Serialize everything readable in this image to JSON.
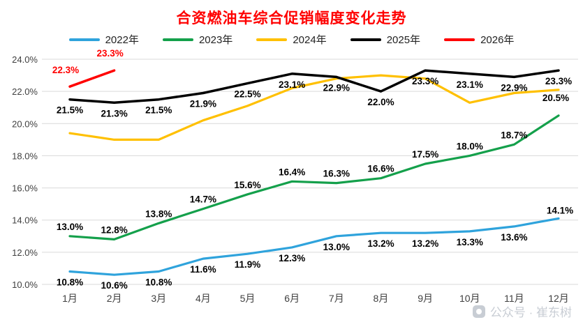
{
  "watermark": {
    "text": "公众号 · 崔东树",
    "icon": "camera-icon"
  },
  "chart_data": {
    "type": "line",
    "title": "合资燃油车综合促销幅度变化走势",
    "xlabel": "",
    "ylabel": "",
    "categories": [
      "1月",
      "2月",
      "3月",
      "4月",
      "5月",
      "6月",
      "7月",
      "8月",
      "9月",
      "10月",
      "11月",
      "12月"
    ],
    "ylim": [
      10,
      24
    ],
    "ytick_step": 2,
    "ytick_labels": [
      "10.0%",
      "12.0%",
      "14.0%",
      "16.0%",
      "18.0%",
      "20.0%",
      "22.0%",
      "24.0%"
    ],
    "grid": true,
    "legend_position": "top",
    "series": [
      {
        "name": "2022年",
        "color": "#2FA3DC",
        "label_color": "#000000",
        "show_labels": true,
        "label_side": "below",
        "values": [
          10.8,
          10.6,
          10.8,
          11.6,
          11.9,
          12.3,
          13.0,
          13.2,
          13.2,
          13.3,
          13.6,
          14.1
        ]
      },
      {
        "name": "2023年",
        "color": "#14A04B",
        "label_color": "#000000",
        "show_labels": true,
        "label_side": "above",
        "values": [
          13.0,
          12.8,
          13.8,
          14.7,
          15.6,
          16.4,
          16.3,
          16.6,
          17.5,
          18.0,
          18.7,
          20.5
        ]
      },
      {
        "name": "2024年",
        "color": "#FFC000",
        "label_color": "#000000",
        "show_labels": false,
        "label_side": "above",
        "values": [
          19.4,
          19.0,
          19.0,
          20.2,
          21.1,
          22.2,
          22.8,
          23.0,
          22.8,
          21.3,
          21.9,
          22.1
        ]
      },
      {
        "name": "2025年",
        "color": "#000000",
        "label_color": "#000000",
        "show_labels": true,
        "label_side": "below",
        "values": [
          21.5,
          21.3,
          21.5,
          21.9,
          22.5,
          23.1,
          22.9,
          22.0,
          23.3,
          23.1,
          22.9,
          23.3
        ]
      },
      {
        "name": "2026年",
        "color": "#FF0000",
        "label_color": "#FF0000",
        "show_labels": true,
        "label_side": "above",
        "values": [
          22.3,
          23.3,
          null,
          null,
          null,
          null,
          null,
          null,
          null,
          null,
          null,
          null
        ]
      }
    ]
  }
}
